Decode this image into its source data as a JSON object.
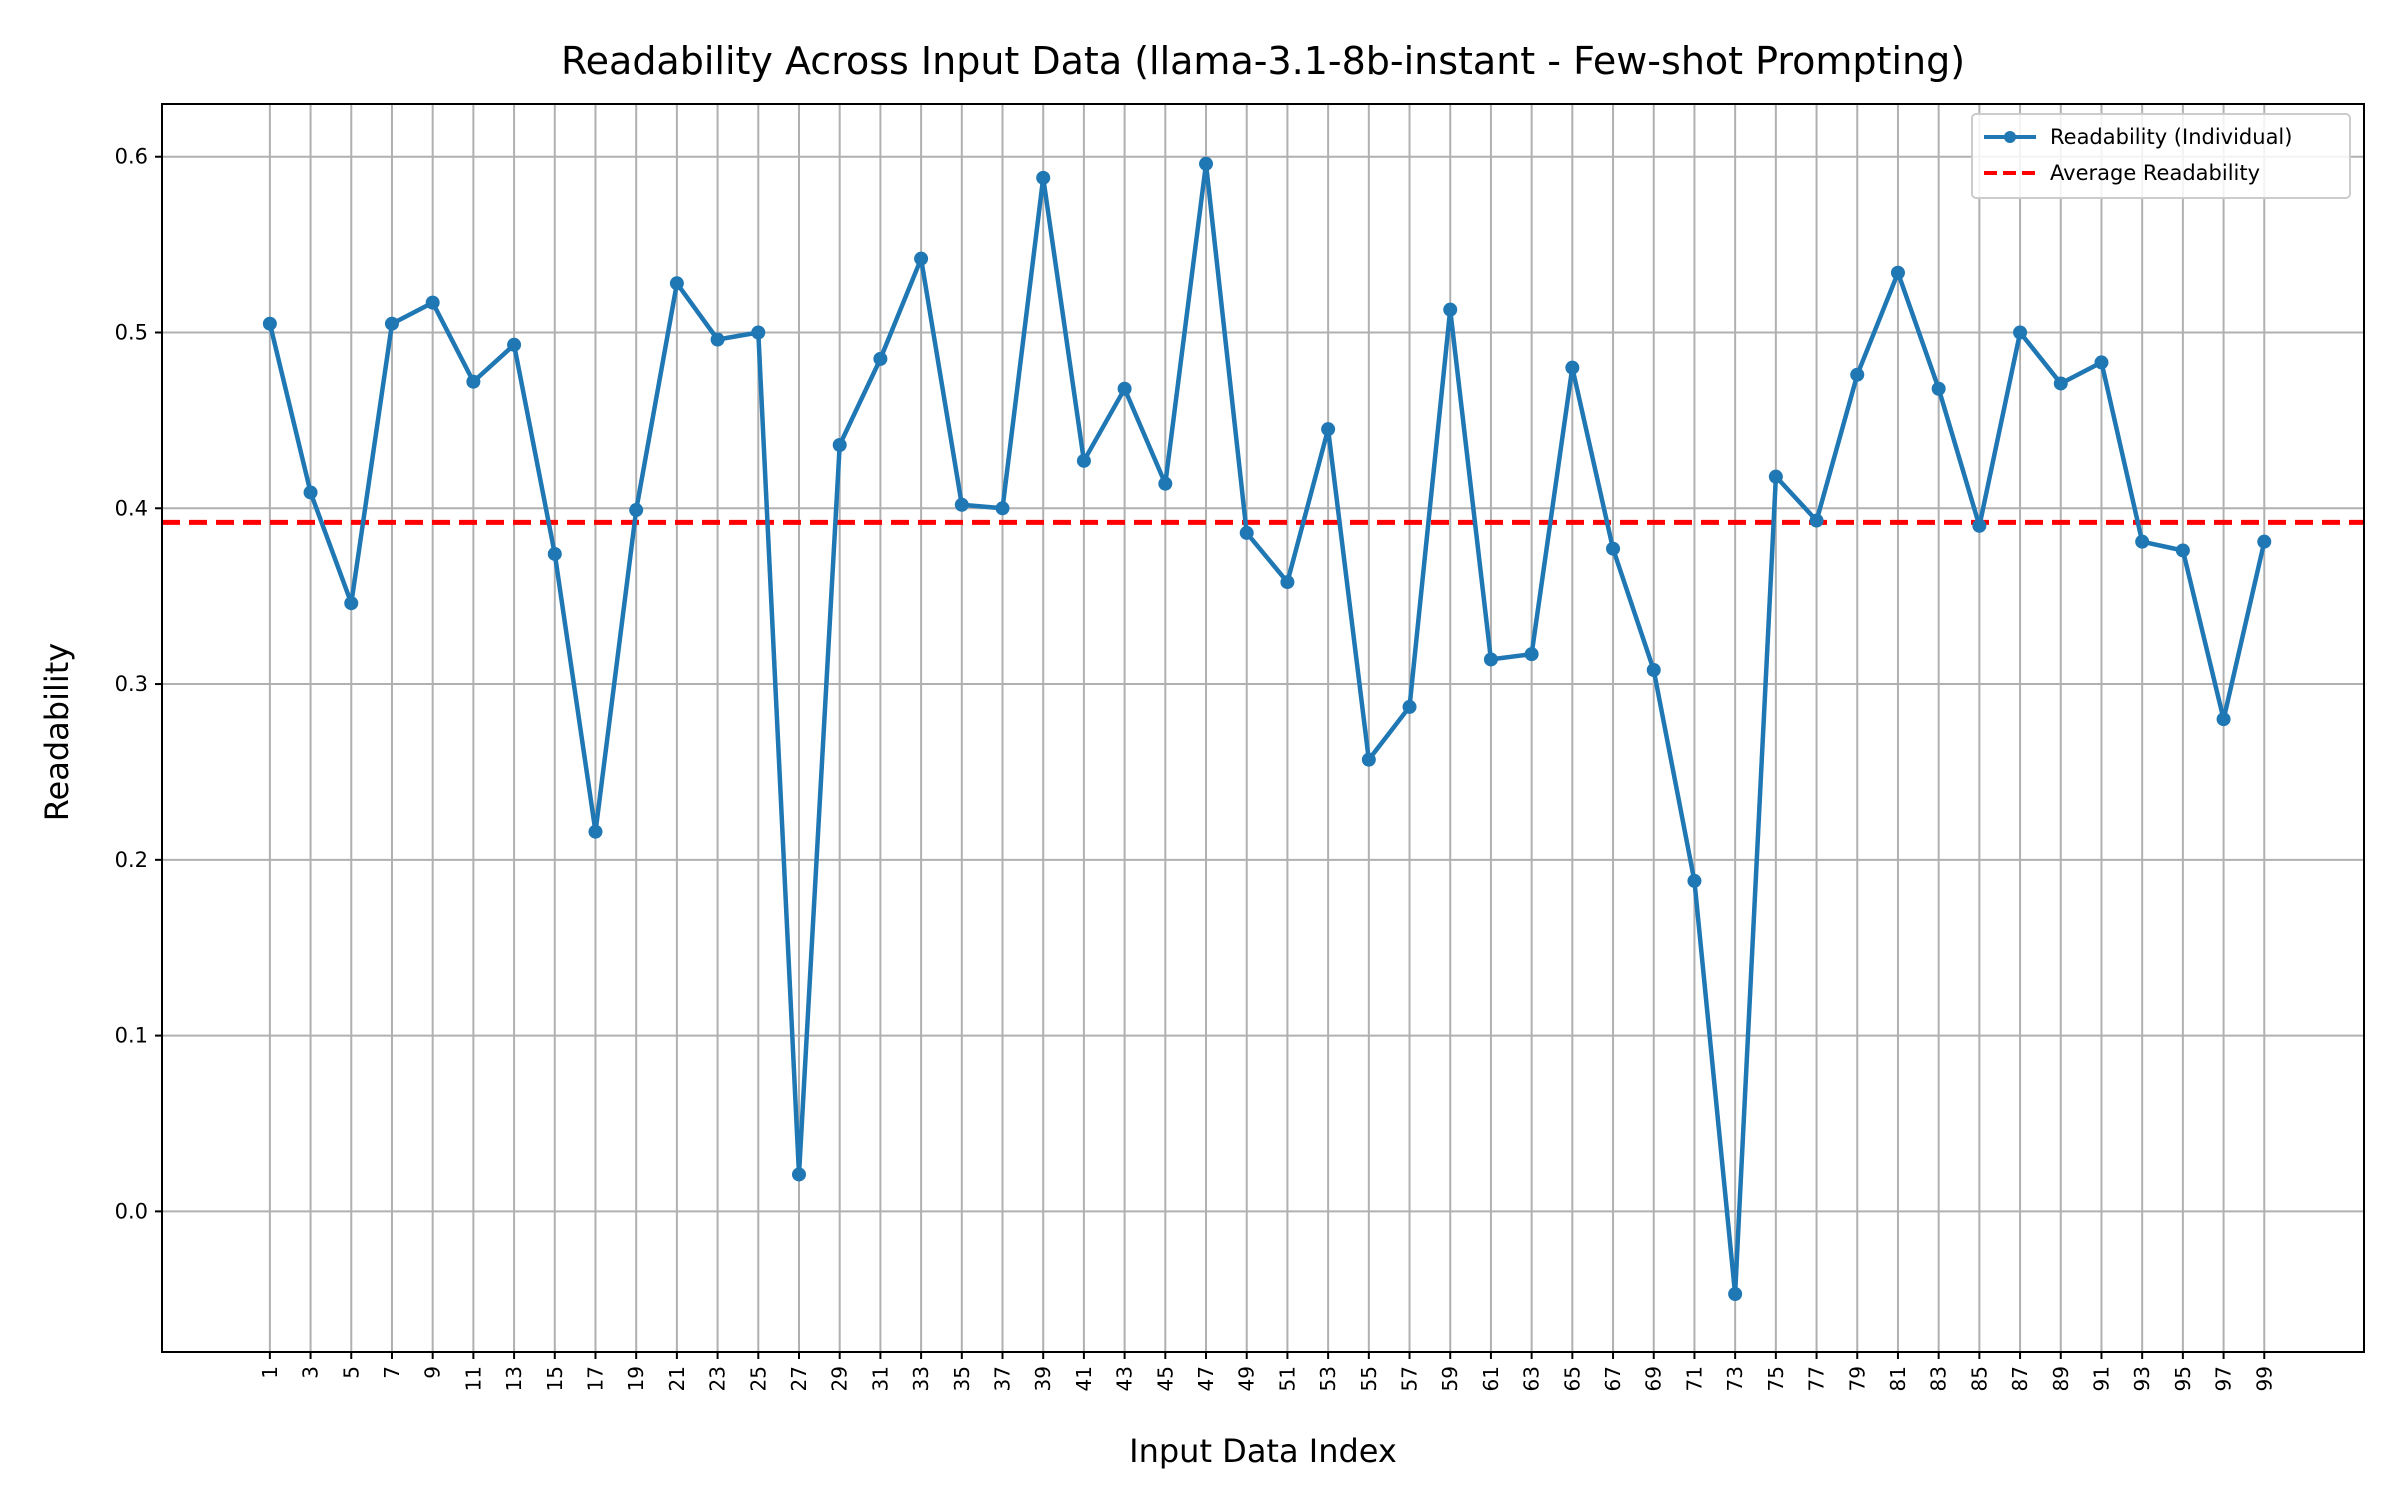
{
  "chart_data": {
    "type": "line",
    "title": "Readability Across Input Data (llama-3.1-8b-instant - Few-shot Prompting)",
    "xlabel": "Input Data Index",
    "ylabel": "Readability",
    "x": [
      1,
      3,
      5,
      7,
      9,
      11,
      13,
      15,
      17,
      19,
      21,
      23,
      25,
      27,
      29,
      31,
      33,
      35,
      37,
      39,
      41,
      43,
      45,
      47,
      49,
      51,
      53,
      55,
      57,
      59,
      61,
      63,
      65,
      67,
      69,
      71,
      73,
      75,
      77,
      79,
      81,
      83,
      85,
      87,
      89,
      91,
      93,
      95,
      97,
      99
    ],
    "series": [
      {
        "name": "Readability (Individual)",
        "color": "#1f77b4",
        "marker": "circle",
        "values": [
          0.505,
          0.409,
          0.346,
          0.505,
          0.517,
          0.472,
          0.493,
          0.374,
          0.216,
          0.399,
          0.528,
          0.496,
          0.5,
          0.021,
          0.436,
          0.485,
          0.542,
          0.402,
          0.4,
          0.588,
          0.427,
          0.468,
          0.414,
          0.596,
          0.386,
          0.358,
          0.445,
          0.257,
          0.287,
          0.513,
          0.314,
          0.317,
          0.48,
          0.377,
          0.308,
          0.188,
          -0.047,
          0.418,
          0.393,
          0.476,
          0.534,
          0.468,
          0.39,
          0.5,
          0.471,
          0.483,
          0.381,
          0.376,
          0.28,
          0.381
        ]
      }
    ],
    "reference_line": {
      "name": "Average Readability",
      "value": 0.392,
      "color": "#ff0000",
      "style": "dashed"
    },
    "xticks": [
      "1",
      "3",
      "5",
      "7",
      "9",
      "11",
      "13",
      "15",
      "17",
      "19",
      "21",
      "23",
      "25",
      "27",
      "29",
      "31",
      "33",
      "35",
      "37",
      "39",
      "41",
      "43",
      "45",
      "47",
      "49",
      "51",
      "53",
      "55",
      "57",
      "59",
      "61",
      "63",
      "65",
      "67",
      "69",
      "71",
      "73",
      "75",
      "77",
      "79",
      "81",
      "83",
      "85",
      "87",
      "89",
      "91",
      "93",
      "95",
      "97",
      "99"
    ],
    "yticks": [
      "0.0",
      "0.1",
      "0.2",
      "0.3",
      "0.4",
      "0.5",
      "0.6"
    ],
    "ytick_values": [
      0.0,
      0.1,
      0.2,
      0.3,
      0.4,
      0.5,
      0.6
    ],
    "xlim": [
      -4.3,
      103.9
    ],
    "ylim": [
      -0.08,
      0.63
    ],
    "grid": true,
    "legend_position": "top-right"
  }
}
